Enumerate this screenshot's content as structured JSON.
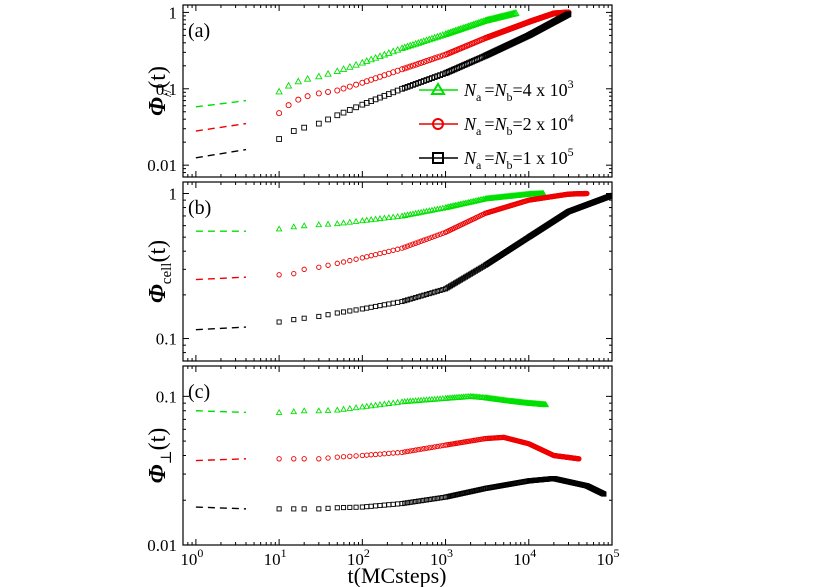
{
  "figure": {
    "xlabel": "t(MCsteps)",
    "x_scale": "log",
    "xlim": [
      0.7,
      100000
    ],
    "x_ticks": [
      {
        "v": 1,
        "base": "10",
        "exp": "0"
      },
      {
        "v": 10,
        "base": "10",
        "exp": "1"
      },
      {
        "v": 100,
        "base": "10",
        "exp": "2"
      },
      {
        "v": 1000,
        "base": "10",
        "exp": "3"
      },
      {
        "v": 10000,
        "base": "10",
        "exp": "4"
      },
      {
        "v": 100000,
        "base": "10",
        "exp": "5"
      }
    ]
  },
  "legend": {
    "placement": "inside panel (a), lower-right",
    "entries": [
      {
        "marker": "triangle",
        "color": "#00e000",
        "N": "N",
        "sub_a": "a",
        "eq": "=",
        "N2": "N",
        "sub_b": "b",
        "value": "=4 x 10",
        "exp": "3"
      },
      {
        "marker": "circle",
        "color": "#ee0000",
        "N": "N",
        "sub_a": "a",
        "eq": "=",
        "N2": "N",
        "sub_b": "b",
        "value": "=2 x 10",
        "exp": "4"
      },
      {
        "marker": "square",
        "color": "#000000",
        "N": "N",
        "sub_a": "a",
        "eq": "=",
        "N2": "N",
        "sub_b": "b",
        "value": "=1 x 10",
        "exp": "5"
      }
    ]
  },
  "chart_data": [
    {
      "type": "scatter",
      "panel_label": "(a)",
      "ylabel": {
        "symbol": "Φ",
        "subscript": "//",
        "arg": "(t)"
      },
      "y_scale": "log",
      "ylim": [
        0.007,
        1.25
      ],
      "y_ticks": [
        {
          "v": 0.01,
          "label": "0.01"
        },
        {
          "v": 0.1,
          "label": "0.1"
        },
        {
          "v": 1,
          "label": "1"
        }
      ],
      "series": [
        {
          "color": "#00e000",
          "marker": "triangle",
          "dashed_x": [
            1,
            4
          ],
          "dashed_y": [
            0.058,
            0.07
          ],
          "points": [
            [
              10,
              0.092
            ],
            [
              13,
              0.11
            ],
            [
              17,
              0.125
            ],
            [
              22,
              0.135
            ],
            [
              30,
              0.145
            ],
            [
              50,
              0.17
            ],
            [
              100,
              0.22
            ],
            [
              300,
              0.34
            ],
            [
              1000,
              0.52
            ],
            [
              3000,
              0.78
            ],
            [
              7000,
              0.98
            ]
          ]
        },
        {
          "color": "#ee0000",
          "marker": "circle",
          "dashed_x": [
            1,
            4
          ],
          "dashed_y": [
            0.028,
            0.035
          ],
          "points": [
            [
              10,
              0.048
            ],
            [
              13,
              0.061
            ],
            [
              17,
              0.072
            ],
            [
              22,
              0.08
            ],
            [
              30,
              0.087
            ],
            [
              50,
              0.095
            ],
            [
              100,
              0.12
            ],
            [
              300,
              0.18
            ],
            [
              1000,
              0.28
            ],
            [
              3000,
              0.46
            ],
            [
              10000,
              0.75
            ],
            [
              20000,
              0.97
            ],
            [
              30000,
              1.0
            ]
          ]
        },
        {
          "color": "#000000",
          "marker": "square",
          "dashed_x": [
            1,
            4
          ],
          "dashed_y": [
            0.0125,
            0.016
          ],
          "points": [
            [
              10,
              0.022
            ],
            [
              15,
              0.028
            ],
            [
              20,
              0.031
            ],
            [
              30,
              0.035
            ],
            [
              50,
              0.045
            ],
            [
              100,
              0.062
            ],
            [
              300,
              0.1
            ],
            [
              1000,
              0.16
            ],
            [
              3000,
              0.27
            ],
            [
              10000,
              0.5
            ],
            [
              20000,
              0.75
            ],
            [
              30000,
              0.95
            ]
          ]
        }
      ]
    },
    {
      "type": "scatter",
      "panel_label": "(b)",
      "ylabel": {
        "symbol": "Φ",
        "subscript": "cell",
        "arg": "(t)"
      },
      "y_scale": "log",
      "ylim": [
        0.07,
        1.2
      ],
      "y_ticks": [
        {
          "v": 0.1,
          "label": "0.1"
        },
        {
          "v": 1,
          "label": "1"
        }
      ],
      "series": [
        {
          "color": "#00e000",
          "marker": "triangle",
          "dashed_x": [
            1,
            4
          ],
          "dashed_y": [
            0.55,
            0.55
          ],
          "points": [
            [
              10,
              0.57
            ],
            [
              15,
              0.59
            ],
            [
              20,
              0.6
            ],
            [
              30,
              0.61
            ],
            [
              50,
              0.62
            ],
            [
              100,
              0.65
            ],
            [
              300,
              0.7
            ],
            [
              1000,
              0.8
            ],
            [
              3000,
              0.92
            ],
            [
              10000,
              0.99
            ],
            [
              15000,
              1.0
            ]
          ]
        },
        {
          "color": "#ee0000",
          "marker": "circle",
          "dashed_x": [
            1,
            4
          ],
          "dashed_y": [
            0.255,
            0.265
          ],
          "points": [
            [
              10,
              0.275
            ],
            [
              15,
              0.28
            ],
            [
              20,
              0.3
            ],
            [
              30,
              0.31
            ],
            [
              50,
              0.33
            ],
            [
              100,
              0.36
            ],
            [
              300,
              0.42
            ],
            [
              1000,
              0.54
            ],
            [
              3000,
              0.73
            ],
            [
              10000,
              0.9
            ],
            [
              30000,
              0.99
            ],
            [
              50000,
              1.0
            ]
          ]
        },
        {
          "color": "#000000",
          "marker": "square",
          "dashed_x": [
            1,
            4
          ],
          "dashed_y": [
            0.115,
            0.12
          ],
          "points": [
            [
              10,
              0.13
            ],
            [
              15,
              0.135
            ],
            [
              20,
              0.138
            ],
            [
              30,
              0.142
            ],
            [
              50,
              0.15
            ],
            [
              100,
              0.16
            ],
            [
              300,
              0.18
            ],
            [
              1000,
              0.22
            ],
            [
              3000,
              0.32
            ],
            [
              10000,
              0.5
            ],
            [
              30000,
              0.75
            ],
            [
              100000,
              0.97
            ]
          ]
        }
      ]
    },
    {
      "type": "scatter",
      "panel_label": "(c)",
      "ylabel": {
        "symbol": "Φ",
        "subscript": "⊥",
        "arg": "(t)"
      },
      "y_scale": "log",
      "ylim": [
        0.01,
        0.16
      ],
      "y_ticks": [
        {
          "v": 0.01,
          "label": "0.01"
        },
        {
          "v": 0.1,
          "label": "0.1"
        }
      ],
      "series": [
        {
          "color": "#00e000",
          "marker": "triangle",
          "dashed_x": [
            1,
            4
          ],
          "dashed_y": [
            0.08,
            0.078
          ],
          "points": [
            [
              10,
              0.078
            ],
            [
              15,
              0.079
            ],
            [
              20,
              0.08
            ],
            [
              30,
              0.08
            ],
            [
              50,
              0.081
            ],
            [
              100,
              0.085
            ],
            [
              300,
              0.092
            ],
            [
              1000,
              0.097
            ],
            [
              2000,
              0.1
            ],
            [
              3000,
              0.098
            ],
            [
              6000,
              0.093
            ],
            [
              10000,
              0.09
            ],
            [
              16000,
              0.088
            ]
          ]
        },
        {
          "color": "#ee0000",
          "marker": "circle",
          "dashed_x": [
            1,
            4
          ],
          "dashed_y": [
            0.037,
            0.038
          ],
          "points": [
            [
              10,
              0.038
            ],
            [
              15,
              0.038
            ],
            [
              20,
              0.038
            ],
            [
              30,
              0.038
            ],
            [
              50,
              0.039
            ],
            [
              100,
              0.04
            ],
            [
              300,
              0.042
            ],
            [
              1000,
              0.047
            ],
            [
              3000,
              0.052
            ],
            [
              5000,
              0.053
            ],
            [
              10000,
              0.048
            ],
            [
              20000,
              0.04
            ],
            [
              40000,
              0.038
            ]
          ]
        },
        {
          "color": "#000000",
          "marker": "square",
          "dashed_x": [
            1,
            4
          ],
          "dashed_y": [
            0.018,
            0.0175
          ],
          "points": [
            [
              10,
              0.0175
            ],
            [
              15,
              0.0175
            ],
            [
              20,
              0.0175
            ],
            [
              30,
              0.0175
            ],
            [
              50,
              0.0178
            ],
            [
              100,
              0.018
            ],
            [
              300,
              0.019
            ],
            [
              1000,
              0.021
            ],
            [
              3000,
              0.024
            ],
            [
              10000,
              0.027
            ],
            [
              20000,
              0.028
            ],
            [
              50000,
              0.025
            ],
            [
              80000,
              0.022
            ]
          ]
        }
      ]
    }
  ]
}
